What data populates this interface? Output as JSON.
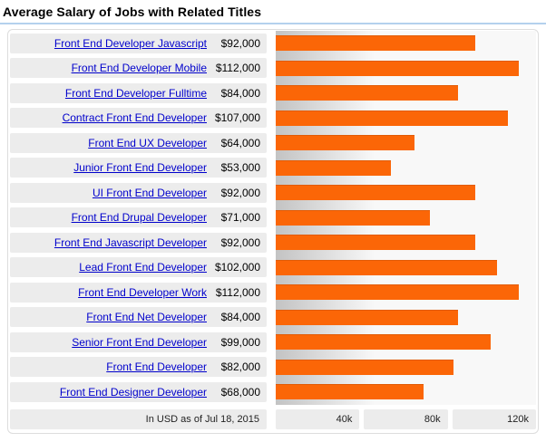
{
  "title": "Average Salary of Jobs with Related Titles",
  "colors": {
    "bar": "#fb6607",
    "title_rule": "#b4d1ed",
    "link": "#0000cc",
    "cell_bg": "#ececec",
    "chart_bg": "#f8f8f8"
  },
  "chart_data": {
    "type": "bar",
    "orientation": "horizontal",
    "title": "Average Salary of Jobs with Related Titles",
    "categories": [
      "Front End Developer Javascript",
      "Front End Developer Mobile",
      "Front End Developer Fulltime",
      "Contract Front End Developer",
      "Front End UX Developer",
      "Junior Front End Developer",
      "UI Front End Developer",
      "Front End Drupal Developer",
      "Front End Javascript Developer",
      "Lead Front End Developer",
      "Front End Developer Work",
      "Front End Net Developer",
      "Senior Front End Developer",
      "Front End Developer",
      "Front End Designer Developer"
    ],
    "values": [
      92000,
      112000,
      84000,
      107000,
      64000,
      53000,
      92000,
      71000,
      92000,
      102000,
      112000,
      84000,
      99000,
      82000,
      68000
    ],
    "value_labels": [
      "$92,000",
      "$112,000",
      "$84,000",
      "$107,000",
      "$64,000",
      "$53,000",
      "$92,000",
      "$71,000",
      "$92,000",
      "$102,000",
      "$112,000",
      "$84,000",
      "$99,000",
      "$82,000",
      "$68,000"
    ],
    "xlim": [
      0,
      120000
    ],
    "tick_labels": [
      "40k",
      "80k",
      "120k"
    ],
    "grid": false,
    "bar_color": "#fb6607",
    "note": "In USD as of Jul 18, 2015"
  },
  "footer": {
    "note": "In USD as of Jul 18, 2015",
    "axis_labels": [
      "40k",
      "80k",
      "120k"
    ]
  }
}
